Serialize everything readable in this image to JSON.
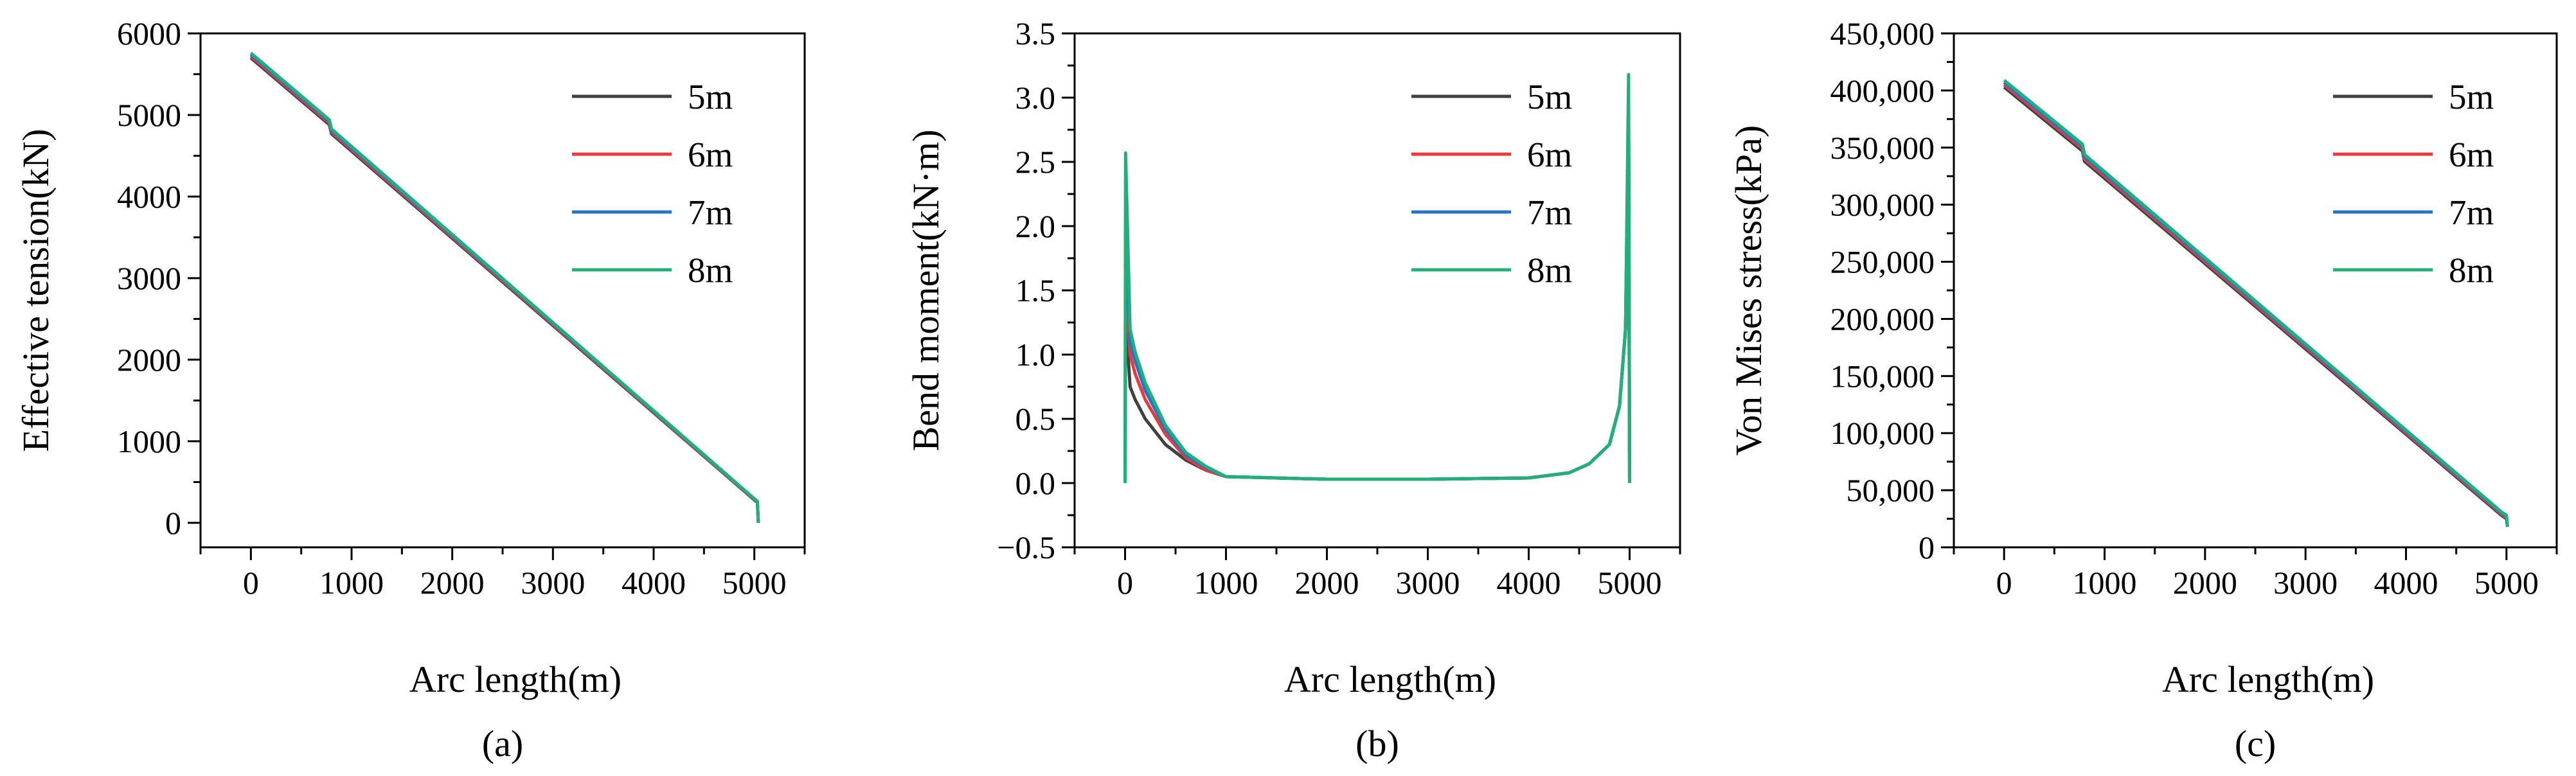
{
  "figure": {
    "panel_labels": [
      "(a)",
      "(b)",
      "(c)"
    ]
  },
  "legend": [
    "5m",
    "6m",
    "7m",
    "8m"
  ],
  "colors": {
    "5m": "#404040",
    "6m": "#e83a3a",
    "7m": "#2a72c8",
    "8m": "#21b07a"
  },
  "chart_data": [
    {
      "type": "line",
      "title": "",
      "panel": "(a)",
      "xlabel": "Arc length(m)",
      "ylabel": "Effective tension(kN)",
      "xlim": [
        -500,
        5500
      ],
      "ylim": [
        -300,
        6000
      ],
      "xticks": [
        0,
        1000,
        2000,
        3000,
        4000,
        5000
      ],
      "xtick_labels": [
        "0",
        "1000",
        "2000",
        "3000",
        "4000",
        "5000"
      ],
      "yticks": [
        0,
        1000,
        2000,
        3000,
        4000,
        5000,
        6000
      ],
      "ytick_labels": [
        "0",
        "1000",
        "2000",
        "3000",
        "4000",
        "5000",
        "6000"
      ],
      "grid": false,
      "legend_position": "top-right",
      "series": [
        {
          "name": "5m",
          "x": [
            0,
            780,
            800,
            5000,
            5030,
            5040
          ],
          "y": [
            5700,
            4880,
            4770,
            280,
            250,
            0
          ]
        },
        {
          "name": "6m",
          "x": [
            0,
            780,
            800,
            5000,
            5030,
            5040
          ],
          "y": [
            5720,
            4900,
            4790,
            285,
            255,
            0
          ]
        },
        {
          "name": "7m",
          "x": [
            0,
            780,
            800,
            5000,
            5030,
            5040
          ],
          "y": [
            5740,
            4920,
            4810,
            290,
            260,
            0
          ]
        },
        {
          "name": "8m",
          "x": [
            0,
            780,
            800,
            5000,
            5030,
            5040
          ],
          "y": [
            5760,
            4940,
            4830,
            295,
            265,
            0
          ]
        }
      ]
    },
    {
      "type": "line",
      "title": "",
      "panel": "(b)",
      "xlabel": "Arc length(m)",
      "ylabel": "Bend moment(kN·m)",
      "xlim": [
        -500,
        5500
      ],
      "ylim": [
        -0.5,
        3.5
      ],
      "xticks": [
        0,
        1000,
        2000,
        3000,
        4000,
        5000
      ],
      "xtick_labels": [
        "0",
        "1000",
        "2000",
        "3000",
        "4000",
        "5000"
      ],
      "yticks": [
        -0.5,
        0.0,
        0.5,
        1.0,
        1.5,
        2.0,
        2.5,
        3.0,
        3.5
      ],
      "ytick_labels": [
        "−0.5",
        "0.0",
        "0.5",
        "1.0",
        "1.5",
        "2.0",
        "2.5",
        "3.0",
        "3.5"
      ],
      "grid": false,
      "legend_position": "top-right",
      "series": [
        {
          "name": "5m",
          "x": [
            0,
            5,
            50,
            100,
            200,
            400,
            600,
            800,
            1000,
            2000,
            3000,
            4000,
            4400,
            4600,
            4800,
            4900,
            4960,
            4990,
            5000
          ],
          "y": [
            0,
            1.3,
            0.75,
            0.65,
            0.5,
            0.3,
            0.18,
            0.1,
            0.05,
            0.03,
            0.03,
            0.04,
            0.08,
            0.15,
            0.3,
            0.6,
            1.2,
            2.8,
            0
          ]
        },
        {
          "name": "6m",
          "x": [
            0,
            5,
            50,
            100,
            200,
            400,
            600,
            800,
            1000,
            2000,
            3000,
            4000,
            4400,
            4600,
            4800,
            4900,
            4960,
            4990,
            5000
          ],
          "y": [
            0,
            1.6,
            1.0,
            0.85,
            0.65,
            0.38,
            0.2,
            0.1,
            0.05,
            0.03,
            0.03,
            0.04,
            0.08,
            0.15,
            0.3,
            0.6,
            1.2,
            2.9,
            0
          ]
        },
        {
          "name": "7m",
          "x": [
            0,
            5,
            50,
            100,
            200,
            400,
            600,
            800,
            1000,
            2000,
            3000,
            4000,
            4400,
            4600,
            4800,
            4900,
            4960,
            4990,
            5000
          ],
          "y": [
            0,
            2.0,
            1.1,
            0.95,
            0.72,
            0.42,
            0.22,
            0.12,
            0.05,
            0.03,
            0.03,
            0.04,
            0.08,
            0.15,
            0.3,
            0.6,
            1.2,
            3.0,
            0
          ]
        },
        {
          "name": "8m",
          "x": [
            0,
            5,
            50,
            100,
            200,
            400,
            600,
            800,
            1000,
            2000,
            3000,
            4000,
            4400,
            4600,
            4800,
            4900,
            4960,
            4990,
            5000
          ],
          "y": [
            0,
            2.57,
            1.2,
            1.02,
            0.78,
            0.45,
            0.24,
            0.13,
            0.05,
            0.03,
            0.03,
            0.04,
            0.08,
            0.15,
            0.3,
            0.6,
            1.2,
            3.18,
            0
          ]
        }
      ]
    },
    {
      "type": "line",
      "title": "",
      "panel": "(c)",
      "xlabel": "Arc length(m)",
      "ylabel": "Von Mises stress(kPa)",
      "xlim": [
        -500,
        5500
      ],
      "ylim": [
        0,
        450000
      ],
      "xticks": [
        0,
        1000,
        2000,
        3000,
        4000,
        5000
      ],
      "xtick_labels": [
        "0",
        "1000",
        "2000",
        "3000",
        "4000",
        "5000"
      ],
      "yticks": [
        0,
        50000,
        100000,
        150000,
        200000,
        250000,
        300000,
        350000,
        400000,
        450000
      ],
      "ytick_labels": [
        "0",
        "50,000",
        "100,000",
        "150,000",
        "200,000",
        "250,000",
        "300,000",
        "350,000",
        "400,000",
        "450,000"
      ],
      "grid": false,
      "legend_position": "top-right",
      "series": [
        {
          "name": "5m",
          "x": [
            0,
            780,
            800,
            4950,
            5000,
            5010
          ],
          "y": [
            403000,
            347000,
            338000,
            28000,
            25000,
            18000
          ]
        },
        {
          "name": "6m",
          "x": [
            0,
            780,
            800,
            4950,
            5000,
            5010
          ],
          "y": [
            405000,
            349000,
            340000,
            29000,
            26000,
            18000
          ]
        },
        {
          "name": "7m",
          "x": [
            0,
            780,
            800,
            4950,
            5000,
            5010
          ],
          "y": [
            407000,
            351000,
            342000,
            30000,
            27000,
            18000
          ]
        },
        {
          "name": "8m",
          "x": [
            0,
            780,
            800,
            4950,
            5000,
            5010
          ],
          "y": [
            409000,
            353000,
            344000,
            31000,
            28000,
            18000
          ]
        }
      ]
    }
  ]
}
